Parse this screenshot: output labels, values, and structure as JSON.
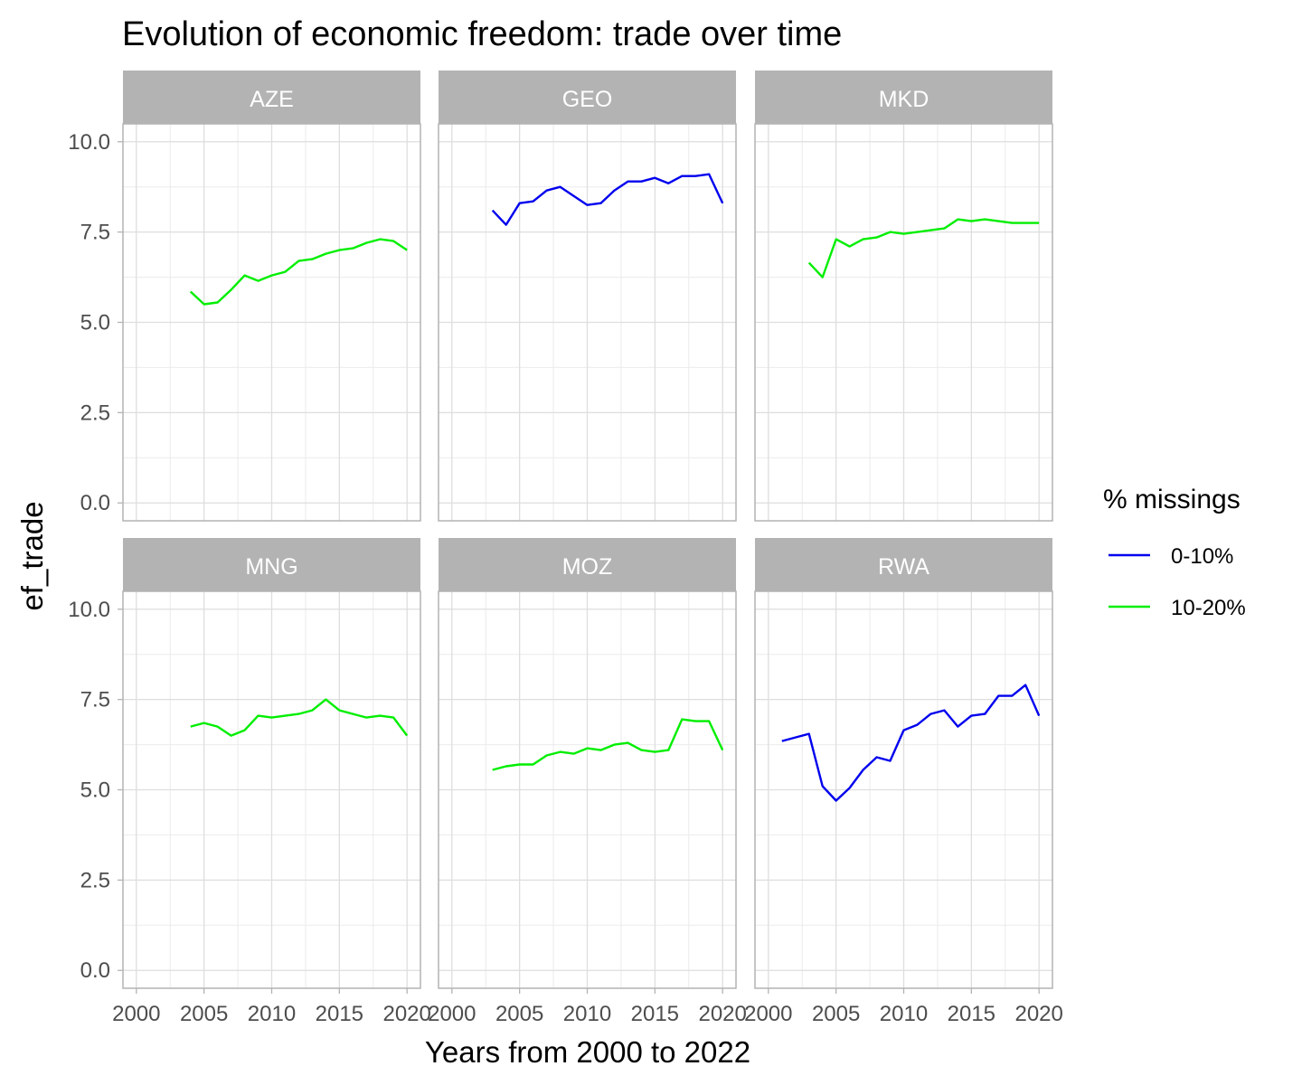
{
  "chart_data": {
    "type": "line",
    "title": "Evolution of economic freedom: trade over time",
    "xlabel": "Years from 2000 to 2022",
    "ylabel": "ef_trade",
    "xlim": [
      2000,
      2020
    ],
    "ylim": [
      0,
      10
    ],
    "x_ticks": [
      "2000",
      "2005",
      "2010",
      "2015",
      "2020"
    ],
    "y_ticks": [
      "0.0",
      "2.5",
      "5.0",
      "7.5",
      "10.0"
    ],
    "grid": true,
    "legend": {
      "title": "% missings",
      "placement": "right",
      "items": [
        {
          "label": "0-10%",
          "color": "#0000ee"
        },
        {
          "label": "10-20%",
          "color": "#00ee00"
        }
      ]
    },
    "panels": [
      {
        "label": "AZE",
        "group": "10-20%",
        "x": [
          2004,
          2005,
          2006,
          2007,
          2008,
          2009,
          2010,
          2011,
          2012,
          2013,
          2014,
          2015,
          2016,
          2017,
          2018,
          2019,
          2020
        ],
        "y": [
          5.85,
          5.5,
          5.55,
          5.9,
          6.3,
          6.15,
          6.3,
          6.4,
          6.7,
          6.75,
          6.9,
          7.0,
          7.05,
          7.2,
          7.3,
          7.25,
          7.0
        ]
      },
      {
        "label": "GEO",
        "group": "0-10%",
        "x": [
          2003,
          2004,
          2005,
          2006,
          2007,
          2008,
          2009,
          2010,
          2011,
          2012,
          2013,
          2014,
          2015,
          2016,
          2017,
          2018,
          2019,
          2020
        ],
        "y": [
          8.1,
          7.7,
          8.3,
          8.35,
          8.65,
          8.75,
          8.5,
          8.25,
          8.3,
          8.65,
          8.9,
          8.9,
          9.0,
          8.85,
          9.05,
          9.05,
          9.1,
          8.3
        ]
      },
      {
        "label": "MKD",
        "group": "10-20%",
        "x": [
          2003,
          2004,
          2005,
          2006,
          2007,
          2008,
          2009,
          2010,
          2011,
          2012,
          2013,
          2014,
          2015,
          2016,
          2017,
          2018,
          2019,
          2020
        ],
        "y": [
          6.65,
          6.25,
          7.3,
          7.1,
          7.3,
          7.35,
          7.5,
          7.45,
          7.5,
          7.55,
          7.6,
          7.85,
          7.8,
          7.85,
          7.8,
          7.75,
          7.75,
          7.75
        ]
      },
      {
        "label": "MNG",
        "group": "10-20%",
        "x": [
          2004,
          2005,
          2006,
          2007,
          2008,
          2009,
          2010,
          2011,
          2012,
          2013,
          2014,
          2015,
          2016,
          2017,
          2018,
          2019,
          2020
        ],
        "y": [
          6.75,
          6.85,
          6.75,
          6.5,
          6.65,
          7.05,
          7.0,
          7.05,
          7.1,
          7.2,
          7.5,
          7.2,
          7.1,
          7.0,
          7.05,
          7.0,
          6.5
        ]
      },
      {
        "label": "MOZ",
        "group": "10-20%",
        "x": [
          2003,
          2004,
          2005,
          2006,
          2007,
          2008,
          2009,
          2010,
          2011,
          2012,
          2013,
          2014,
          2015,
          2016,
          2017,
          2018,
          2019,
          2020
        ],
        "y": [
          5.55,
          5.65,
          5.7,
          5.7,
          5.95,
          6.05,
          6.0,
          6.15,
          6.1,
          6.25,
          6.3,
          6.1,
          6.05,
          6.1,
          6.95,
          6.9,
          6.9,
          6.1
        ]
      },
      {
        "label": "RWA",
        "group": "0-10%",
        "x": [
          2001,
          2002,
          2003,
          2004,
          2005,
          2006,
          2007,
          2008,
          2009,
          2010,
          2011,
          2012,
          2013,
          2014,
          2015,
          2016,
          2017,
          2018,
          2019,
          2020
        ],
        "y": [
          6.35,
          6.45,
          6.55,
          5.1,
          4.7,
          5.05,
          5.55,
          5.9,
          5.8,
          6.65,
          6.8,
          7.1,
          7.2,
          6.75,
          7.05,
          7.1,
          7.6,
          7.6,
          7.9,
          7.05
        ]
      }
    ]
  }
}
